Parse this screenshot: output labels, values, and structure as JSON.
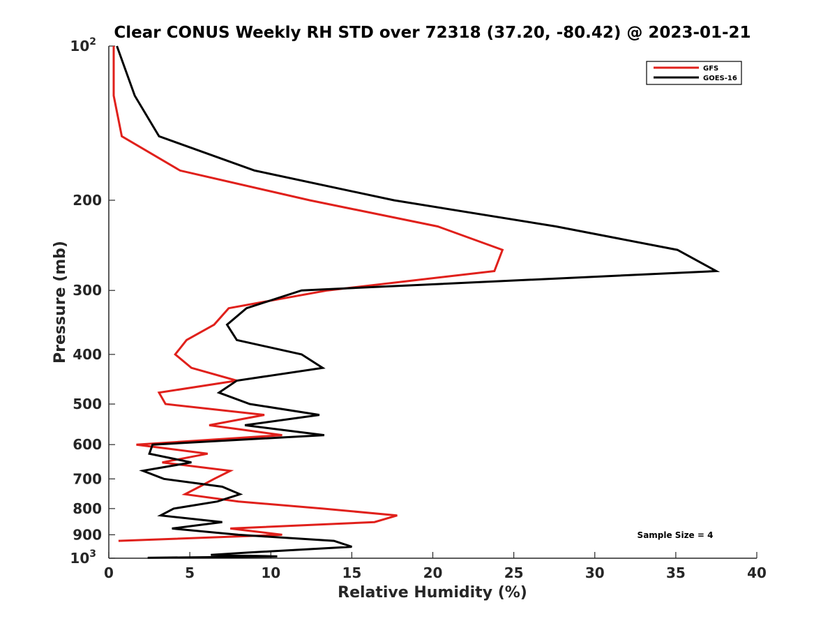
{
  "chart_data": {
    "type": "line",
    "title": "Clear CONUS Weekly RH STD over 72318 (37.20, -80.42) @ 2023-01-21",
    "xlabel": "Relative Humidity (%)",
    "ylabel": "Pressure (mb)",
    "xlim": [
      0,
      40
    ],
    "ylim": [
      100,
      1000
    ],
    "y_scale": "log",
    "y_reversed": true,
    "grid": false,
    "legend_position": "top-right",
    "x_ticks": [
      "0",
      "5",
      "10",
      "15",
      "20",
      "25",
      "30",
      "35",
      "40"
    ],
    "y_ticks": [
      {
        "value": 100,
        "base": "10",
        "exp": "2"
      },
      {
        "value": 200,
        "base": "200",
        "exp": ""
      },
      {
        "value": 300,
        "base": "300",
        "exp": ""
      },
      {
        "value": 400,
        "base": "400",
        "exp": ""
      },
      {
        "value": 500,
        "base": "500",
        "exp": ""
      },
      {
        "value": 600,
        "base": "600",
        "exp": ""
      },
      {
        "value": 700,
        "base": "700",
        "exp": ""
      },
      {
        "value": 800,
        "base": "800",
        "exp": ""
      },
      {
        "value": 900,
        "base": "900",
        "exp": ""
      },
      {
        "value": 1000,
        "base": "10",
        "exp": "3"
      }
    ],
    "annotation": "Sample Size = 4",
    "series": [
      {
        "name": "GFS",
        "color": "#e0201b",
        "points": [
          [
            0.3,
            100
          ],
          [
            0.3,
            125
          ],
          [
            0.8,
            150
          ],
          [
            4.4,
            175
          ],
          [
            12.4,
            200
          ],
          [
            20.3,
            225
          ],
          [
            24.3,
            250
          ],
          [
            23.8,
            275
          ],
          [
            13.5,
            300
          ],
          [
            7.4,
            325
          ],
          [
            6.5,
            350
          ],
          [
            4.8,
            375
          ],
          [
            4.1,
            400
          ],
          [
            5.1,
            425
          ],
          [
            7.9,
            450
          ],
          [
            3.1,
            475
          ],
          [
            3.5,
            500
          ],
          [
            9.6,
            525
          ],
          [
            6.2,
            550
          ],
          [
            10.7,
            575
          ],
          [
            1.7,
            600
          ],
          [
            6.1,
            625
          ],
          [
            3.3,
            650
          ],
          [
            7.5,
            675
          ],
          [
            6.5,
            700
          ],
          [
            5.6,
            725
          ],
          [
            4.7,
            750
          ],
          [
            8.0,
            775
          ],
          [
            13.2,
            800
          ],
          [
            17.8,
            825
          ],
          [
            16.4,
            850
          ],
          [
            7.5,
            875
          ],
          [
            10.7,
            900
          ],
          [
            0.6,
            925
          ]
        ]
      },
      {
        "name": "GOES-16",
        "color": "#000000",
        "points": [
          [
            0.5,
            100
          ],
          [
            1.6,
            125
          ],
          [
            3.1,
            150
          ],
          [
            9.0,
            175
          ],
          [
            17.6,
            200
          ],
          [
            27.6,
            225
          ],
          [
            35.1,
            250
          ],
          [
            37.5,
            275
          ],
          [
            11.9,
            300
          ],
          [
            8.5,
            325
          ],
          [
            7.3,
            350
          ],
          [
            7.9,
            375
          ],
          [
            11.9,
            400
          ],
          [
            13.2,
            425
          ],
          [
            7.9,
            450
          ],
          [
            6.8,
            475
          ],
          [
            8.7,
            500
          ],
          [
            13.0,
            525
          ],
          [
            8.4,
            550
          ],
          [
            13.3,
            575
          ],
          [
            2.7,
            600
          ],
          [
            2.5,
            625
          ],
          [
            5.1,
            650
          ],
          [
            2.1,
            675
          ],
          [
            3.4,
            700
          ],
          [
            7.0,
            725
          ],
          [
            8.1,
            750
          ],
          [
            6.7,
            775
          ],
          [
            4.0,
            800
          ],
          [
            3.2,
            825
          ],
          [
            7.0,
            850
          ],
          [
            3.9,
            875
          ],
          [
            8.0,
            900
          ],
          [
            13.9,
            925
          ],
          [
            15.0,
            950
          ],
          [
            8.6,
            975
          ],
          [
            6.3,
            985
          ],
          [
            10.4,
            992
          ],
          [
            2.4,
            998
          ]
        ]
      }
    ]
  }
}
